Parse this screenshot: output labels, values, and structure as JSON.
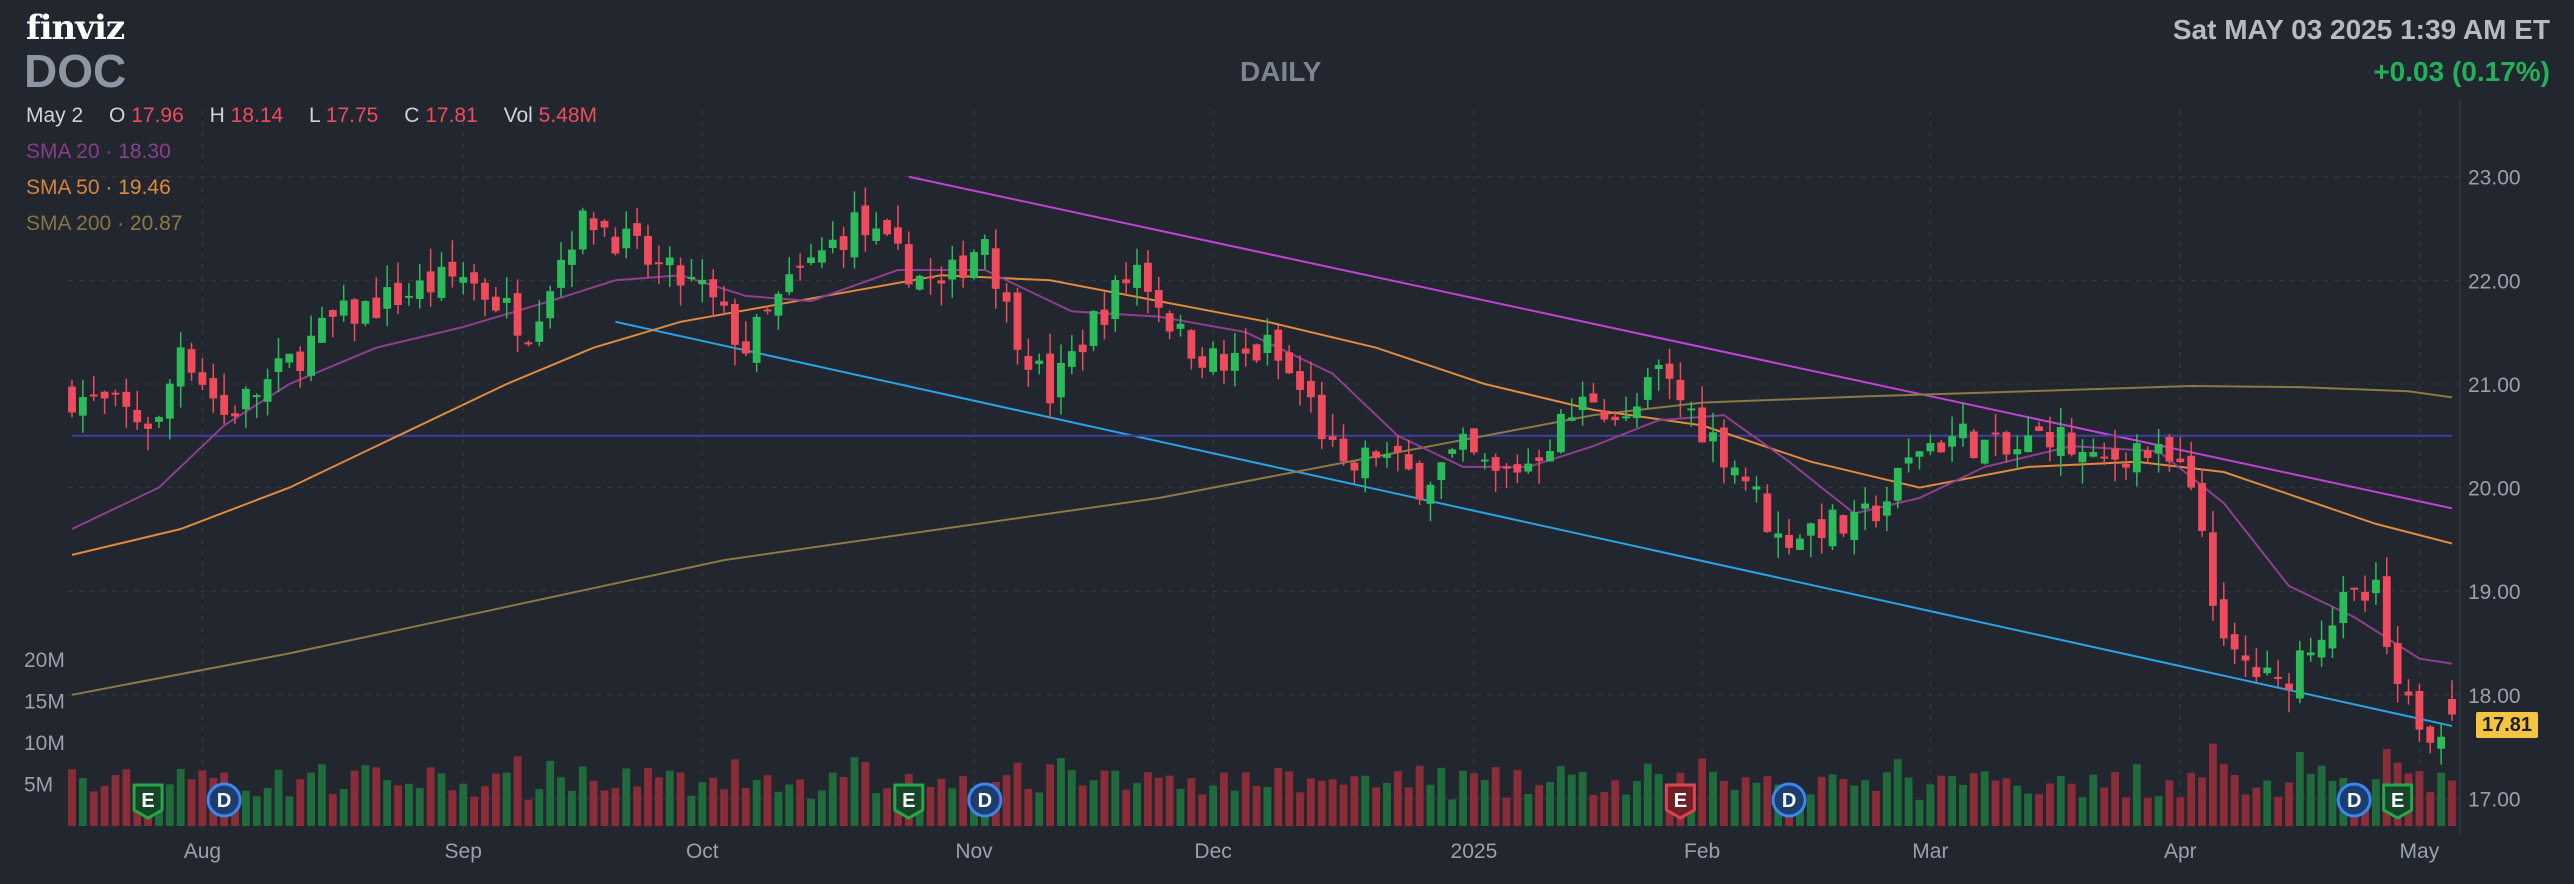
{
  "header": {
    "logo": "finviz",
    "ticker": "DOC",
    "timeframe": "DAILY",
    "datetime": "Sat MAY 03 2025 1:39 AM ET",
    "change": "+0.03 (0.17%)"
  },
  "ohlc": {
    "date": "May 2",
    "open_label": "O",
    "open": "17.96",
    "high_label": "H",
    "high": "18.14",
    "low_label": "L",
    "low": "17.75",
    "close_label": "C",
    "close": "17.81",
    "vol_label": "Vol",
    "vol": "5.48M"
  },
  "smas": [
    {
      "name": "SMA 20",
      "value": "18.30",
      "color": "#8e3f8f"
    },
    {
      "name": "SMA 50",
      "value": "19.46",
      "color": "#e08a3c"
    },
    {
      "name": "SMA 200",
      "value": "20.87",
      "color": "#8c7a45"
    }
  ],
  "price_badge": "17.81",
  "colors": {
    "up": "#2bbb5a",
    "down": "#ef4b5c",
    "upper_trendline": "#c143d8",
    "lower_trendline": "#27a4e6",
    "horizontal_line": "#3f3fa3"
  },
  "chart_data": {
    "type": "candlestick",
    "y_axis": {
      "ticks": [
        "23.00",
        "22.00",
        "21.00",
        "20.00",
        "19.00",
        "18.00",
        "17.00"
      ],
      "ylim": [
        16.85,
        23.2
      ]
    },
    "volume_axis": {
      "ticks": [
        "20M",
        "15M",
        "10M",
        "5M"
      ],
      "ylim": [
        0,
        22
      ]
    },
    "x_axis": {
      "ticks": [
        "Aug",
        "Sep",
        "Oct",
        "Nov",
        "Dec",
        "2025",
        "Feb",
        "Mar",
        "Apr",
        "May"
      ]
    },
    "waypoints": [
      {
        "i": 0,
        "c": 20.9
      },
      {
        "i": 8,
        "c": 20.6
      },
      {
        "i": 10,
        "c": 21.4
      },
      {
        "i": 14,
        "c": 20.7
      },
      {
        "i": 18,
        "c": 21.0
      },
      {
        "i": 24,
        "c": 21.6
      },
      {
        "i": 30,
        "c": 21.85
      },
      {
        "i": 36,
        "c": 22.05
      },
      {
        "i": 42,
        "c": 21.55
      },
      {
        "i": 46,
        "c": 22.45
      },
      {
        "i": 48,
        "c": 22.6
      },
      {
        "i": 54,
        "c": 22.1
      },
      {
        "i": 58,
        "c": 21.9
      },
      {
        "i": 62,
        "c": 21.35
      },
      {
        "i": 66,
        "c": 21.95
      },
      {
        "i": 72,
        "c": 22.55
      },
      {
        "i": 76,
        "c": 22.2
      },
      {
        "i": 80,
        "c": 21.9
      },
      {
        "i": 84,
        "c": 22.45
      },
      {
        "i": 86,
        "c": 21.7
      },
      {
        "i": 90,
        "c": 20.9
      },
      {
        "i": 94,
        "c": 21.6
      },
      {
        "i": 98,
        "c": 22.15
      },
      {
        "i": 102,
        "c": 21.45
      },
      {
        "i": 106,
        "c": 21.15
      },
      {
        "i": 110,
        "c": 21.35
      },
      {
        "i": 114,
        "c": 20.8
      },
      {
        "i": 117,
        "c": 20.1
      },
      {
        "i": 120,
        "c": 20.35
      },
      {
        "i": 124,
        "c": 20.05
      },
      {
        "i": 128,
        "c": 20.35
      },
      {
        "i": 131,
        "c": 20.1
      },
      {
        "i": 134,
        "c": 20.25
      },
      {
        "i": 137,
        "c": 20.6
      },
      {
        "i": 140,
        "c": 20.9
      },
      {
        "i": 143,
        "c": 20.6
      },
      {
        "i": 146,
        "c": 21.1
      },
      {
        "i": 150,
        "c": 20.6
      },
      {
        "i": 154,
        "c": 20.1
      },
      {
        "i": 157,
        "c": 19.5
      },
      {
        "i": 161,
        "c": 19.65
      },
      {
        "i": 164,
        "c": 19.6
      },
      {
        "i": 167,
        "c": 19.9
      },
      {
        "i": 170,
        "c": 20.4
      },
      {
        "i": 174,
        "c": 20.5
      },
      {
        "i": 178,
        "c": 20.3
      },
      {
        "i": 182,
        "c": 20.55
      },
      {
        "i": 186,
        "c": 20.2
      },
      {
        "i": 190,
        "c": 20.4
      },
      {
        "i": 194,
        "c": 20.15
      },
      {
        "i": 196,
        "c": 19.6
      },
      {
        "i": 198,
        "c": 18.4
      },
      {
        "i": 200,
        "c": 18.3
      },
      {
        "i": 203,
        "c": 18.05
      },
      {
        "i": 206,
        "c": 18.55
      },
      {
        "i": 209,
        "c": 18.85
      },
      {
        "i": 212,
        "c": 18.95
      },
      {
        "i": 214,
        "c": 17.95
      },
      {
        "i": 217,
        "c": 17.7
      },
      {
        "i": 219,
        "c": 17.81
      }
    ],
    "sma20": [
      [
        0,
        19.6
      ],
      [
        8,
        20.0
      ],
      [
        14,
        20.6
      ],
      [
        20,
        21.0
      ],
      [
        28,
        21.35
      ],
      [
        36,
        21.55
      ],
      [
        44,
        21.8
      ],
      [
        50,
        22.0
      ],
      [
        56,
        22.05
      ],
      [
        62,
        21.85
      ],
      [
        68,
        21.8
      ],
      [
        76,
        22.1
      ],
      [
        84,
        22.1
      ],
      [
        92,
        21.7
      ],
      [
        100,
        21.65
      ],
      [
        108,
        21.5
      ],
      [
        116,
        21.1
      ],
      [
        122,
        20.5
      ],
      [
        128,
        20.2
      ],
      [
        134,
        20.2
      ],
      [
        140,
        20.4
      ],
      [
        146,
        20.65
      ],
      [
        152,
        20.7
      ],
      [
        158,
        20.25
      ],
      [
        164,
        19.75
      ],
      [
        170,
        19.9
      ],
      [
        176,
        20.2
      ],
      [
        184,
        20.4
      ],
      [
        192,
        20.35
      ],
      [
        198,
        19.85
      ],
      [
        204,
        19.05
      ],
      [
        210,
        18.75
      ],
      [
        216,
        18.35
      ],
      [
        219,
        18.3
      ]
    ],
    "sma50": [
      [
        0,
        19.35
      ],
      [
        10,
        19.6
      ],
      [
        20,
        20.0
      ],
      [
        30,
        20.5
      ],
      [
        40,
        21.0
      ],
      [
        48,
        21.35
      ],
      [
        56,
        21.6
      ],
      [
        64,
        21.75
      ],
      [
        72,
        21.9
      ],
      [
        80,
        22.05
      ],
      [
        90,
        22.0
      ],
      [
        100,
        21.8
      ],
      [
        110,
        21.6
      ],
      [
        120,
        21.35
      ],
      [
        130,
        21.0
      ],
      [
        140,
        20.75
      ],
      [
        150,
        20.6
      ],
      [
        160,
        20.25
      ],
      [
        170,
        20.0
      ],
      [
        180,
        20.2
      ],
      [
        190,
        20.25
      ],
      [
        198,
        20.15
      ],
      [
        205,
        19.9
      ],
      [
        212,
        19.65
      ],
      [
        219,
        19.46
      ]
    ],
    "sma200": [
      [
        0,
        18.0
      ],
      [
        20,
        18.4
      ],
      [
        40,
        18.85
      ],
      [
        60,
        19.3
      ],
      [
        80,
        19.6
      ],
      [
        100,
        19.9
      ],
      [
        120,
        20.3
      ],
      [
        140,
        20.7
      ],
      [
        150,
        20.82
      ],
      [
        165,
        20.88
      ],
      [
        180,
        20.93
      ],
      [
        195,
        20.98
      ],
      [
        205,
        20.97
      ],
      [
        215,
        20.93
      ],
      [
        219,
        20.87
      ]
    ],
    "lines": [
      {
        "name": "upper-trendline",
        "from": [
          77,
          23.0
        ],
        "to": [
          219,
          19.8
        ]
      },
      {
        "name": "lower-trendline",
        "from": [
          50,
          21.6
        ],
        "to": [
          219,
          17.7
        ]
      },
      {
        "name": "horizontal-line",
        "from": [
          0,
          20.5
        ],
        "to": [
          219,
          20.5
        ]
      }
    ],
    "events": [
      {
        "type": "E",
        "i": 7,
        "color": "#27a64a"
      },
      {
        "type": "D",
        "i": 14,
        "color": "#3d86f0"
      },
      {
        "type": "E",
        "i": 77,
        "color": "#27a64a"
      },
      {
        "type": "D",
        "i": 84,
        "color": "#3d86f0"
      },
      {
        "type": "E",
        "i": 148,
        "color": "#d94550"
      },
      {
        "type": "D",
        "i": 158,
        "color": "#3d86f0"
      },
      {
        "type": "D",
        "i": 210,
        "color": "#3d86f0"
      },
      {
        "type": "E",
        "i": 214,
        "color": "#27a64a"
      }
    ],
    "month_ticks": [
      {
        "label": "Aug",
        "i": 12
      },
      {
        "label": "Sep",
        "i": 36
      },
      {
        "label": "Oct",
        "i": 58
      },
      {
        "label": "Nov",
        "i": 83
      },
      {
        "label": "Dec",
        "i": 105
      },
      {
        "label": "2025",
        "i": 129
      },
      {
        "label": "Feb",
        "i": 150
      },
      {
        "label": "Mar",
        "i": 171
      },
      {
        "label": "Apr",
        "i": 194
      },
      {
        "label": "May",
        "i": 216
      }
    ]
  }
}
